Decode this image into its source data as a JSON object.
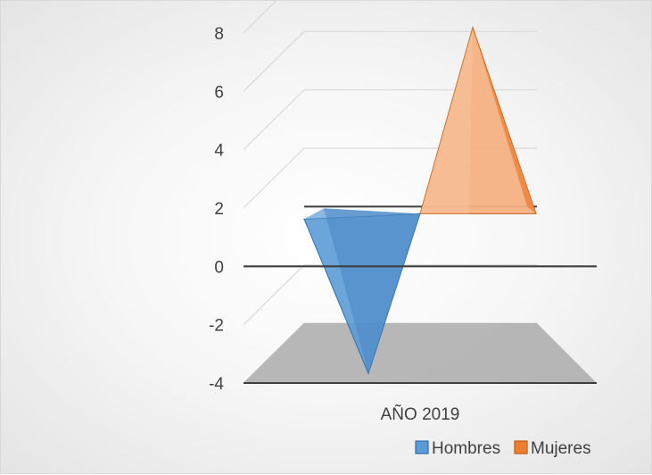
{
  "chart_data": {
    "type": "bar",
    "style": "3d-pyramid",
    "categories": [
      "AÑO 2019"
    ],
    "series": [
      {
        "name": "Hombres",
        "values": [
          -3
        ],
        "color": "#5b9bd5"
      },
      {
        "name": "Mujeres",
        "values": [
          7
        ],
        "color": "#ed7d31"
      }
    ],
    "ylim": [
      -4,
      8
    ],
    "yticks": [
      "8",
      "6",
      "4",
      "2",
      "0",
      "-2",
      "-4"
    ],
    "grid": true,
    "legend_position": "bottom-right"
  }
}
